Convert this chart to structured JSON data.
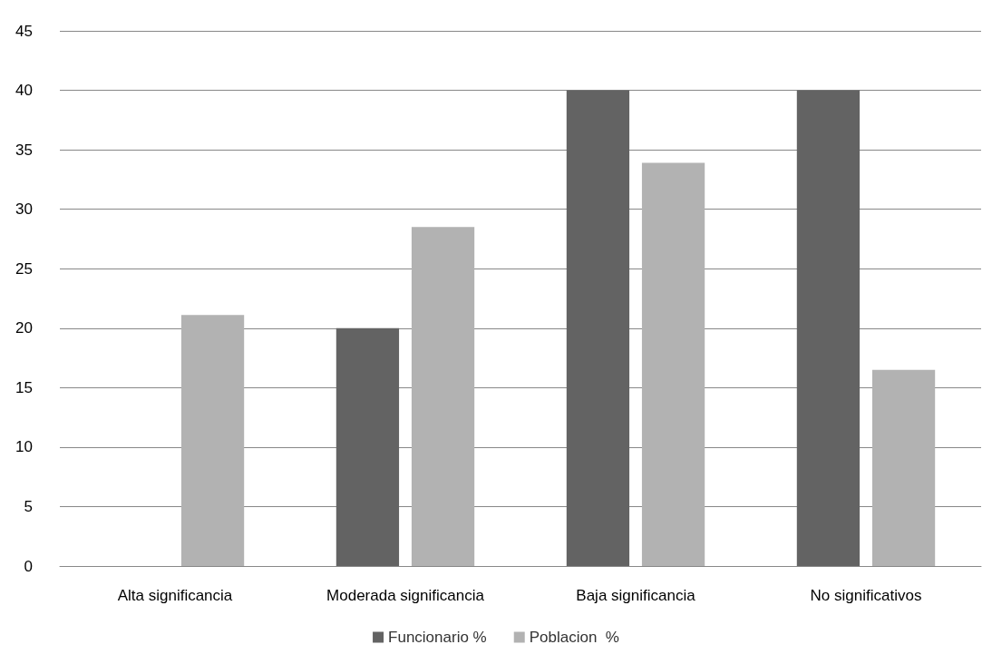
{
  "chart_data": {
    "type": "bar",
    "categories": [
      "Alta significancia",
      "Moderada significancia",
      "Baja significancia",
      "No significativos"
    ],
    "series": [
      {
        "name": "Funcionario %",
        "color": "#636363",
        "values": [
          0,
          20,
          40,
          40
        ]
      },
      {
        "name": "Poblacion  %",
        "color": "#b2b2b2",
        "values": [
          21.1,
          28.5,
          33.9,
          16.5
        ]
      }
    ],
    "ylim": [
      0,
      45
    ],
    "yticks": [
      0,
      5,
      10,
      15,
      20,
      25,
      30,
      35,
      40,
      45
    ],
    "grid": "y",
    "legend": "bottom"
  }
}
